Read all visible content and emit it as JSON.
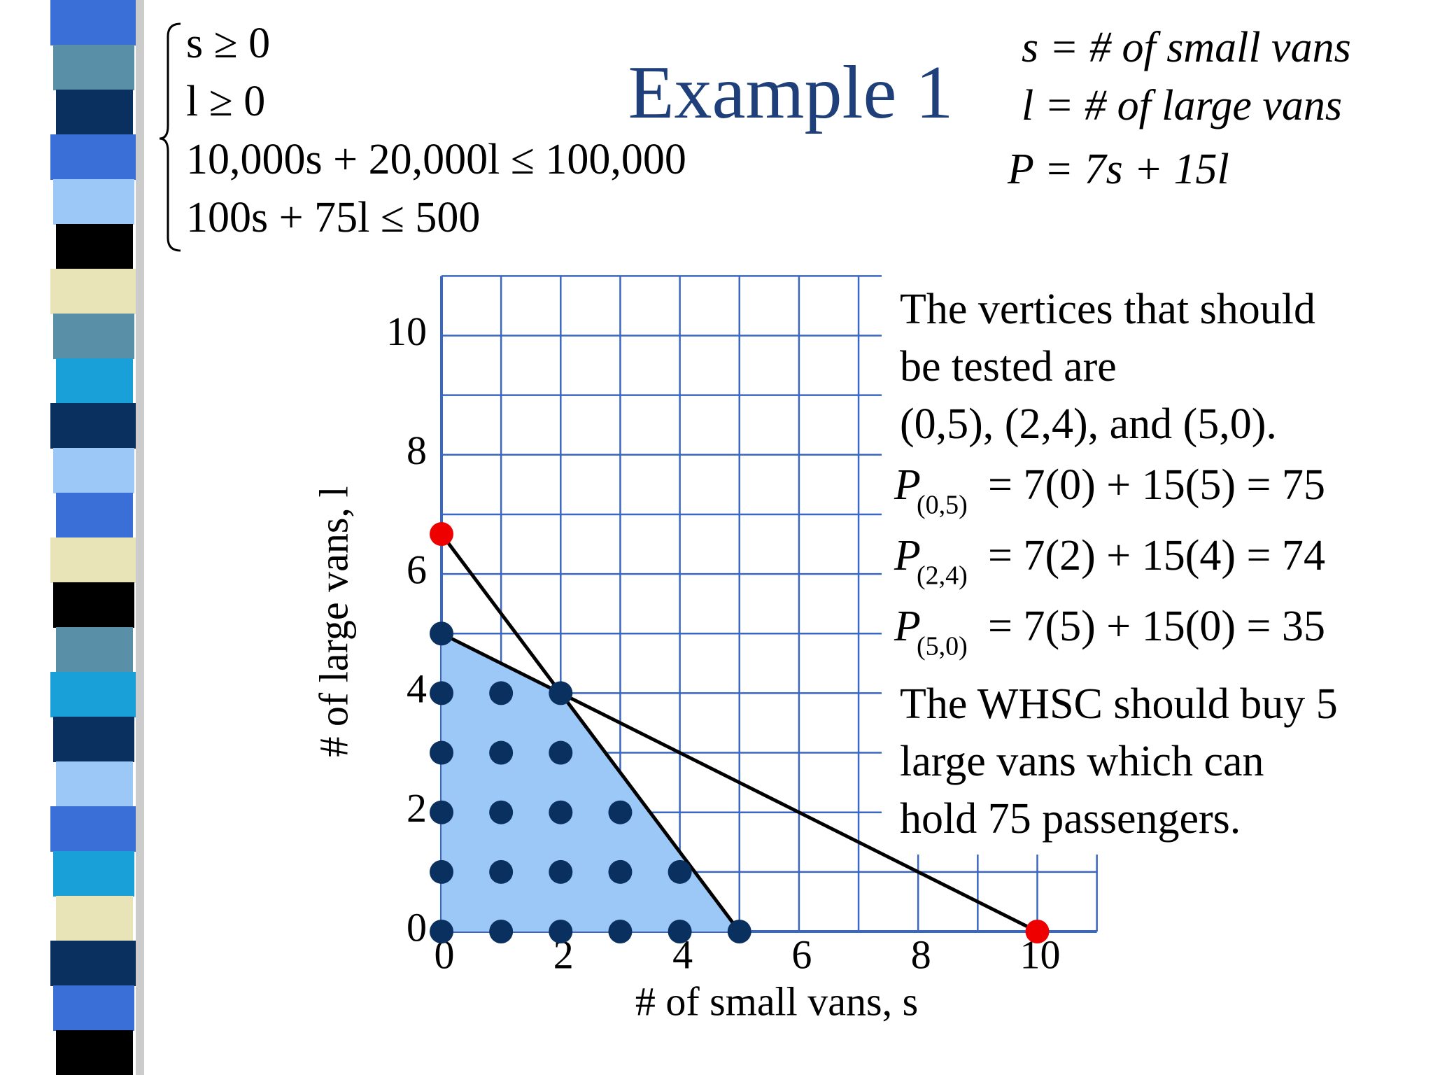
{
  "slide": {
    "title": "Example 1",
    "constraints": [
      "s ≥ 0",
      "l ≥ 0",
      "10,000s + 20,000l ≤ 100,000",
      "100s + 75l ≤ 500"
    ],
    "definitions": [
      "s =  # of small vans",
      "l =  # of large vans",
      "P = 7s + 15l"
    ],
    "note": [
      "The vertices that should",
      "be tested are",
      "(0,5), (2,4), and (5,0)."
    ],
    "profits": [
      {
        "p": "P",
        "sub": "(0,5)",
        "rhs": "= 7(0) + 15(5) = 75"
      },
      {
        "p": "P",
        "sub": "(2,4)",
        "rhs": "= 7(2) + 15(4) = 74"
      },
      {
        "p": "P",
        "sub": "(5,0)",
        "rhs": "= 7(5) + 15(0) = 35"
      }
    ],
    "conclusion": [
      "The WHSC should buy 5",
      "large vans which can",
      "hold 75 passengers."
    ]
  },
  "chart_data": {
    "type": "scatter",
    "x_label": "# of small vans, s",
    "y_label": "# of large vans, l",
    "xlim": [
      0,
      11
    ],
    "ylim": [
      0,
      11
    ],
    "xticks": [
      0,
      2,
      4,
      6,
      8,
      10
    ],
    "yticks": [
      0,
      2,
      4,
      6,
      8,
      10
    ],
    "xgrid": [
      0,
      1,
      2,
      3,
      4,
      5,
      6,
      7,
      8,
      9,
      10,
      11
    ],
    "ygrid": [
      0,
      1,
      2,
      3,
      4,
      5,
      6,
      7,
      8,
      9,
      10,
      11
    ],
    "grid_color": "#3a66c4",
    "region": {
      "color": "#9cc8f8",
      "x": [
        0,
        0,
        2,
        5
      ],
      "y": [
        0,
        5,
        4,
        0
      ]
    },
    "lines": [
      {
        "color": "#000000",
        "x": [
          0,
          10
        ],
        "y": [
          5,
          0
        ]
      },
      {
        "color": "#000000",
        "x": [
          0,
          5
        ],
        "y": [
          6.67,
          0
        ]
      }
    ],
    "series": [
      {
        "color": "#0a3060",
        "x": [
          0,
          1,
          2,
          3,
          4,
          5,
          0,
          1,
          2,
          3,
          4,
          0,
          1,
          2,
          3,
          0,
          1,
          2,
          0,
          1,
          2,
          0
        ],
        "y": [
          0,
          0,
          0,
          0,
          0,
          0,
          1,
          1,
          1,
          1,
          1,
          2,
          2,
          2,
          2,
          3,
          3,
          3,
          4,
          4,
          4,
          5
        ]
      },
      {
        "color": "#ee0000",
        "x": [
          0,
          10
        ],
        "y": [
          6.67,
          0
        ]
      }
    ]
  }
}
